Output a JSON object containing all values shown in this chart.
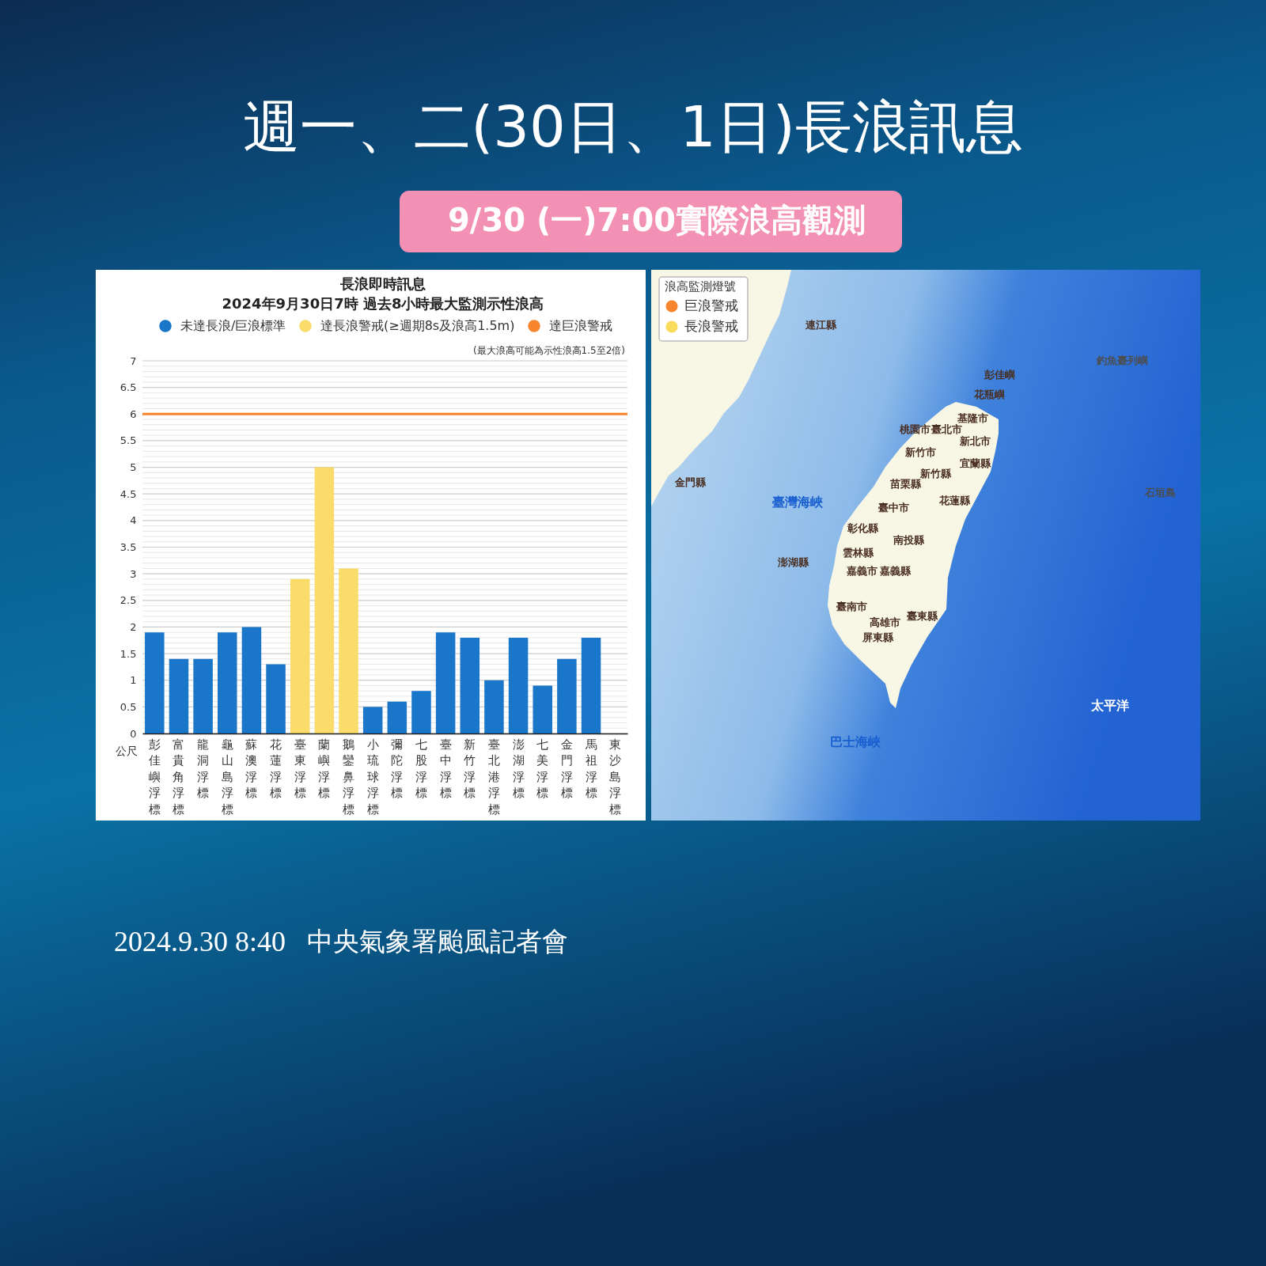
{
  "chart_data": [
    {
      "type": "other",
      "title": "週一、二(30日、1日)長浪訊息",
      "subtitle": "9/30 (一)7:00實際浪高觀測",
      "annotations": [
        "2024.9.30 8:40",
        "中央氣象署颱風記者會"
      ]
    },
    {
      "type": "bar",
      "title": "長浪即時訊息",
      "subtitle": "2024年9月30日7時 過去8小時最大監測示性浪高",
      "ylabel": "公尺",
      "annotations": [
        "(最大浪高可能為示性浪高1.5至2倍)"
      ],
      "categories": [
        "彭佳嶼浮標",
        "富貴角浮標",
        "龍洞浮標",
        "龜山島浮標",
        "蘇澳浮標",
        "花蓮浮標",
        "臺東浮標",
        "蘭嶼浮標",
        "鵝鑾鼻浮標",
        "小琉球浮標",
        "彌陀浮標",
        "七股浮標",
        "臺中浮標",
        "新竹浮標",
        "臺北港浮標",
        "澎湖浮標",
        "七美浮標",
        "金門浮標",
        "馬祖浮標",
        "東沙島浮標"
      ],
      "series": [
        {
          "name": "未達長浪/巨浪標準",
          "color": "#1976c8",
          "values": [
            1.9,
            1.4,
            1.4,
            1.9,
            2,
            1.3,
            null,
            null,
            null,
            0.5,
            0.6,
            0.8,
            1.9,
            1.8,
            1,
            1.8,
            0.9,
            1.4,
            1.8,
            null
          ]
        },
        {
          "name": "達長浪警戒(≥週期8s及浪高1.5m)",
          "color": "#f9dc6a",
          "values": [
            null,
            null,
            null,
            null,
            null,
            null,
            2.9,
            5,
            3.1,
            null,
            null,
            null,
            null,
            null,
            null,
            null,
            null,
            null,
            null,
            null
          ]
        }
      ],
      "stacked": true,
      "ylim": [
        0,
        7
      ],
      "yticks": [
        0,
        {
          "value": 0.1,
          "label": null
        },
        {
          "value": 0.2,
          "label": null
        },
        {
          "value": 0.3,
          "label": null
        },
        {
          "value": 0.4,
          "label": null
        },
        0.5,
        {
          "value": 0.6,
          "label": null
        },
        {
          "value": 0.7,
          "label": null
        },
        {
          "value": 0.8,
          "label": null
        },
        {
          "value": 0.9,
          "label": null
        },
        1,
        {
          "value": 1.1,
          "label": null
        },
        {
          "value": 1.2,
          "label": null
        },
        {
          "value": 1.3,
          "label": null
        },
        {
          "value": 1.4,
          "label": null
        },
        1.5,
        {
          "value": 1.6,
          "label": null
        },
        {
          "value": 1.7,
          "label": null
        },
        {
          "value": 1.8,
          "label": null
        },
        {
          "value": 1.9,
          "label": null
        },
        2,
        {
          "value": 2.1,
          "label": null
        },
        {
          "value": 2.2,
          "label": null
        },
        {
          "value": 2.3,
          "label": null
        },
        {
          "value": 2.4,
          "label": null
        },
        2.5,
        {
          "value": 2.6,
          "label": null
        },
        {
          "value": 2.7,
          "label": null
        },
        {
          "value": 2.8,
          "label": null
        },
        {
          "value": 2.9,
          "label": null
        },
        3,
        {
          "value": 3.1,
          "label": null
        },
        {
          "value": 3.2,
          "label": null
        },
        {
          "value": 3.3,
          "label": null
        },
        {
          "value": 3.4,
          "label": null
        },
        3.5,
        {
          "value": 3.6,
          "label": null
        },
        {
          "value": 3.7,
          "label": null
        },
        {
          "value": 3.8,
          "label": null
        },
        {
          "value": 3.9,
          "label": null
        },
        4,
        {
          "value": 4.1,
          "label": null
        },
        {
          "value": 4.2,
          "label": null
        },
        {
          "value": 4.3,
          "label": null
        },
        {
          "value": 4.4,
          "label": null
        },
        4.5,
        {
          "value": 4.6,
          "label": null
        },
        {
          "value": 4.7,
          "label": null
        },
        {
          "value": 4.8,
          "label": null
        },
        {
          "value": 4.9,
          "label": null
        },
        5,
        {
          "value": 5.1,
          "label": null
        },
        {
          "value": 5.2,
          "label": null
        },
        {
          "value": 5.3,
          "label": null
        },
        {
          "value": 5.4,
          "label": null
        },
        5.5,
        {
          "value": 5.6,
          "label": null
        },
        {
          "value": 5.7,
          "label": null
        },
        {
          "value": 5.8,
          "label": null
        },
        {
          "value": 5.9,
          "label": null
        },
        6,
        {
          "value": 6.1,
          "label": null
        },
        {
          "value": 6.2,
          "label": null
        },
        {
          "value": 6.3,
          "label": null
        },
        {
          "value": 6.4,
          "label": null
        },
        6.5,
        {
          "value": 6.6,
          "label": null
        },
        {
          "value": 6.7,
          "label": null
        },
        {
          "value": 6.8,
          "label": null
        },
        {
          "value": 6.9,
          "label": null
        },
        7
      ],
      "grid": "y",
      "legend": "top",
      "ref_lines": [
        {
          "axis": "y",
          "value": 6,
          "label": "達巨浪警戒",
          "color": "#f6852e"
        }
      ]
    },
    {
      "type": "other",
      "legend_title": "浪高監測燈號",
      "legend": "top left",
      "series": [
        {
          "name": "巨浪警戒",
          "color": "#f6852e"
        },
        {
          "name": "長浪警戒",
          "color": "#f9dc5c"
        }
      ],
      "annotations": [
        "連江縣",
        "釣魚臺列嶼",
        "彭佳嶼",
        "花瓶嶼",
        "基隆市",
        "桃園市",
        "臺北市",
        "新北市",
        "新竹市",
        "宜蘭縣",
        "新竹縣",
        "苗栗縣",
        "金門縣",
        "石垣島",
        "花蓮縣",
        "臺灣海峽",
        "臺中市",
        "彰化縣",
        "南投縣",
        "雲林縣",
        "澎湖縣",
        "嘉義市",
        "嘉義縣",
        "臺南市",
        "臺東縣",
        "高雄市",
        "屏東縣",
        "太平洋",
        "巴士海峽"
      ]
    }
  ]
}
